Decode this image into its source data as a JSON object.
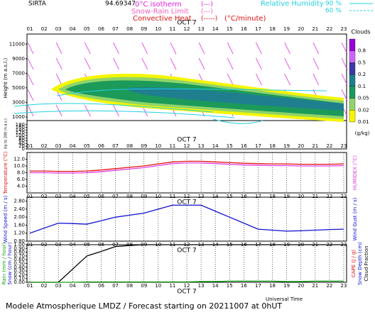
{
  "header": {
    "station": "SIRTA",
    "coord": "94.69347",
    "iso": "0°C isotherm",
    "iso_sym": "(---)",
    "snow": "Snow-Rain Limit",
    "snow_sym": "(---)",
    "conv": "Convective Heat.",
    "conv_sym": "(-----)",
    "conv_unit": "(°C/minute)",
    "rh": "Relative Humidity",
    "rh90": "90 %",
    "rh60": "60 %"
  },
  "footer": "Modele Atmospherique LMDZ / Forecast starting on 20211007 at 0hUT",
  "chart_data": [
    {
      "type": "contour",
      "title": "Clouds",
      "ylabel": "Height (m a.s.l.)",
      "low_ylabel": "Up to 200 m a.s.l.",
      "date": "OCT 7",
      "categories": [
        "01",
        "02",
        "03",
        "04",
        "05",
        "06",
        "07",
        "08",
        "09",
        "10",
        "11",
        "12",
        "13",
        "14",
        "15",
        "16",
        "17",
        "18",
        "19",
        "20",
        "21",
        "22",
        "23"
      ],
      "ylim": [
        500,
        12000
      ],
      "yticks": [
        11000,
        9000,
        7000,
        5000,
        3000,
        1000
      ],
      "low_ylim": [
        0,
        200
      ],
      "low_yticks": [
        0,
        20,
        40,
        60,
        80,
        100,
        120,
        140,
        160,
        180
      ],
      "levels": [
        0.8,
        0.5,
        0.2,
        0.1,
        0.05,
        0.02,
        0.01
      ],
      "colors": [
        "#9b00d9",
        "#cc66ff",
        "#3a3aa8",
        "#1f7f8f",
        "#1c9a5a",
        "#8fd46a",
        "#f5f500"
      ],
      "unit": "(g/kg)"
    },
    {
      "type": "line",
      "date": "OCT 7",
      "categories": [
        "01",
        "02",
        "03",
        "04",
        "05",
        "06",
        "07",
        "08",
        "09",
        "10",
        "11",
        "12",
        "13",
        "14",
        "15",
        "16",
        "17",
        "18",
        "19",
        "20",
        "21",
        "22",
        "23"
      ],
      "ylim": [
        2,
        14
      ],
      "yticks": [
        {
          "value": 12,
          "label": "12.0"
        },
        {
          "value": 10,
          "label": "10.0"
        },
        {
          "value": 8,
          "label": "8.0"
        },
        {
          "value": 6,
          "label": "6.0"
        },
        {
          "value": 4,
          "label": "4.0"
        }
      ],
      "grid": true,
      "y2label": "HUMIDEX (°C)",
      "series": [
        {
          "name": "Temperature (°C)",
          "color": "#e01010",
          "values": [
            8.5,
            8.5,
            8.4,
            8.4,
            8.5,
            8.8,
            9.2,
            9.6,
            10.0,
            10.6,
            11.2,
            11.4,
            11.4,
            11.2,
            11.0,
            10.8,
            10.7,
            10.6,
            10.6,
            10.5,
            10.5,
            10.5,
            10.6
          ]
        },
        {
          "name": "Humidex",
          "color": "#e040e0",
          "values": [
            8.0,
            8.0,
            7.9,
            7.9,
            8.0,
            8.3,
            8.7,
            9.1,
            9.5,
            10.1,
            10.7,
            10.9,
            10.9,
            10.7,
            10.5,
            10.3,
            10.2,
            10.1,
            10.1,
            10.0,
            10.0,
            10.0,
            10.1
          ]
        }
      ]
    },
    {
      "type": "line",
      "date": "OCT 7",
      "categories": [
        "01",
        "02",
        "03",
        "04",
        "05",
        "06",
        "07",
        "08",
        "09",
        "10",
        "11",
        "12",
        "13",
        "14",
        "15",
        "16",
        "17",
        "18",
        "19",
        "20",
        "21",
        "22",
        "23"
      ],
      "ylim": [
        0.8,
        3.0
      ],
      "yticks": [
        {
          "value": 0.8,
          "label": "0.80"
        },
        {
          "value": 1.2,
          "label": "1.20"
        },
        {
          "value": 1.6,
          "label": "1.60"
        },
        {
          "value": 2.0,
          "label": "2.00"
        },
        {
          "value": 2.4,
          "label": "2.40"
        },
        {
          "value": 2.8,
          "label": "2.80"
        }
      ],
      "grid": true,
      "y2label": "Wind Gust (m / s)",
      "series": [
        {
          "name": "Wind Speed (m / s)",
          "color": "#1010d0",
          "values": [
            1.2,
            1.45,
            1.7,
            1.68,
            1.65,
            1.82,
            2.0,
            2.1,
            2.2,
            2.4,
            2.6,
            2.6,
            2.6,
            2.3,
            2.0,
            1.7,
            1.4,
            1.35,
            1.3,
            1.32,
            1.35,
            1.38,
            1.4
          ]
        }
      ]
    },
    {
      "type": "line",
      "date": "OCT 7",
      "xlabel": "Universal Time",
      "categories": [
        "01",
        "02",
        "03",
        "04",
        "05",
        "06",
        "07",
        "08",
        "09",
        "10",
        "11",
        "12",
        "13",
        "14",
        "15",
        "16",
        "17",
        "18",
        "19",
        "20",
        "21",
        "22",
        "23"
      ],
      "ylim": [
        0,
        1
      ],
      "yticks": [
        {
          "value": 0,
          "label": "0.00"
        },
        {
          "value": 0.1,
          "label": "0.10"
        },
        {
          "value": 0.2,
          "label": "0.20"
        },
        {
          "value": 0.3,
          "label": "0.30"
        },
        {
          "value": 0.4,
          "label": "0.40"
        },
        {
          "value": 0.5,
          "label": "0.50"
        },
        {
          "value": 0.6,
          "label": "0.60"
        },
        {
          "value": 0.7,
          "label": "0.70"
        },
        {
          "value": 0.8,
          "label": "0.80"
        },
        {
          "value": 0.9,
          "label": "0.90"
        },
        {
          "value": 1,
          "label": "1.00"
        }
      ],
      "grid": true,
      "ylabels": [
        {
          "text": "Rain (mm / hour)",
          "color": "#10a010"
        },
        {
          "text": "Snow (cm / hour)",
          "color": "#1010d0"
        }
      ],
      "y2labels": [
        {
          "text": "CAPE (J / g)",
          "color": "#e01010"
        },
        {
          "text": "Snow Depth (cm)",
          "color": "#1010d0"
        },
        {
          "text": "Cloud Fraction",
          "color": "#000000"
        }
      ],
      "series": [
        {
          "name": "Cloud Fraction",
          "color": "#000000",
          "values": [
            0,
            0,
            0,
            0.35,
            0.7,
            0.82,
            0.95,
            0.98,
            1,
            1,
            1,
            1,
            1,
            1,
            1,
            1,
            1,
            1,
            1,
            1,
            1,
            1,
            1
          ]
        },
        {
          "name": "Rain (mm / hour)",
          "color": "#10a010",
          "values": [
            0,
            0,
            0,
            0,
            0.01,
            0.01,
            0.01,
            0.01,
            0.01,
            0.01,
            0.01,
            0.01,
            0.02,
            0.02,
            0.03,
            0.03,
            0.03,
            0.03,
            0.02,
            0.02,
            0.03,
            0.03,
            0.03
          ]
        }
      ]
    }
  ]
}
